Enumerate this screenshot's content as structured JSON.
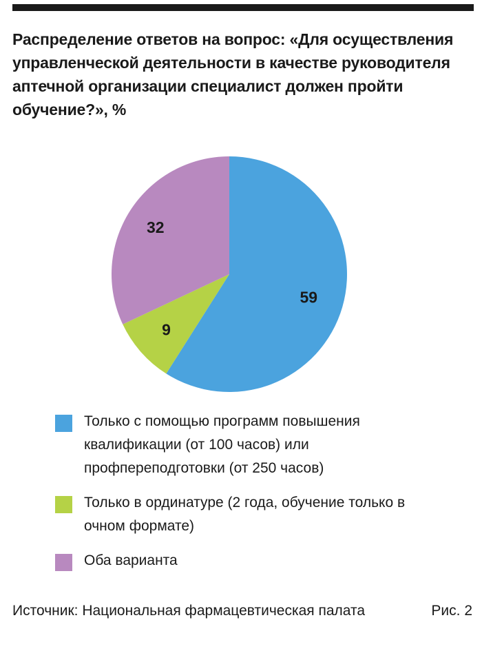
{
  "chart_data": {
    "type": "pie",
    "title": "Распределение ответов на вопрос: «Для осуществления управленческой деятельности в качестве руководителя аптечной организации специалист должен пройти обучение?», %",
    "slices": [
      {
        "label": "Только с помощью программ повышения квалификации (от 100 часов) или профпереподготовки (от 250 часов)",
        "value": 59,
        "display": "59",
        "color": "#4BA3DE"
      },
      {
        "label": "Только в ординатуре (2 года, обучение только в очном формате)",
        "value": 9,
        "display": "9",
        "color": "#B5D246"
      },
      {
        "label": "Оба варианта",
        "value": 32,
        "display": "32",
        "color": "#B889BF"
      }
    ]
  },
  "legend": {
    "item_0": "Только с помощью программ повышения квалификации (от 100 часов) или профпереподготовки (от 250 часов)",
    "item_1": "Только в ординатуре (2 года, обучение только в очном формате)",
    "item_2": "Оба варианта"
  },
  "footer": {
    "source": "Источник: Национальная фармацевтическая палата",
    "figure": "Рис. 2"
  }
}
